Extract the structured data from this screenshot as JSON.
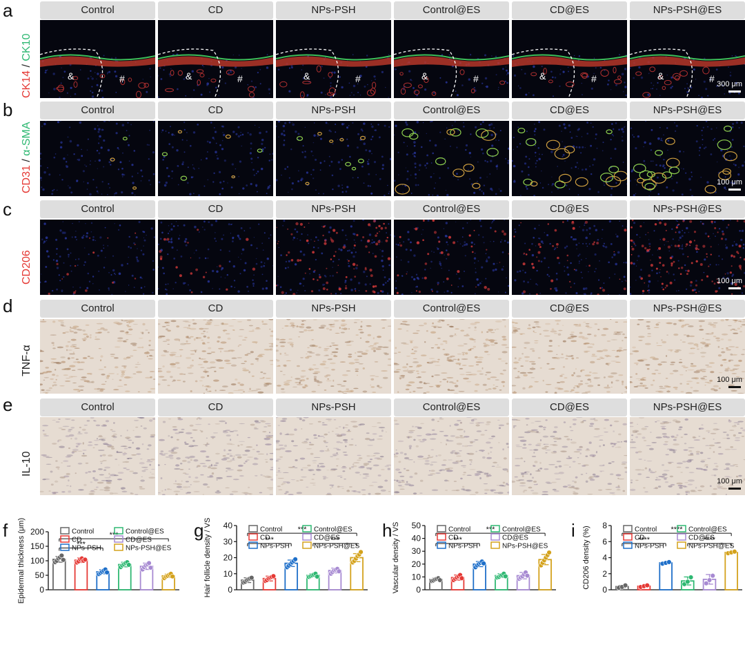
{
  "groups": [
    "Control",
    "CD",
    "NPs-PSH",
    "Control@ES",
    "CD@ES",
    "NPs-PSH@ES"
  ],
  "panels": {
    "a": {
      "letter": "a",
      "label_red": "CK14",
      "label_sep": " / ",
      "label_green": "CK10",
      "scale_text": "300 μm",
      "markers": [
        "&",
        "#"
      ],
      "type": "fluor"
    },
    "b": {
      "letter": "b",
      "label_red": "CD31",
      "label_sep": " / ",
      "label_green": "α-SMA",
      "scale_text": "100 μm",
      "type": "fluor"
    },
    "c": {
      "letter": "c",
      "label_red": "CD206",
      "scale_text": "100 μm",
      "type": "fluor"
    },
    "d": {
      "letter": "d",
      "label": "TNF-α",
      "scale_text": "100 μm",
      "type": "ihc"
    },
    "e": {
      "letter": "e",
      "label": "IL-10",
      "scale_text": "100 μm",
      "type": "ihc"
    }
  },
  "colors": {
    "series": [
      "#666666",
      "#e53935",
      "#1e6fc9",
      "#2eb872",
      "#a78ad2",
      "#d4a21c"
    ],
    "label_red": "#e53935",
    "label_green": "#2eb872"
  },
  "chart_data": [
    {
      "letter": "f",
      "type": "bar",
      "categories": [
        "Control",
        "CD",
        "NPs-PSH",
        "Control@ES",
        "CD@ES",
        "NPs-PSH@ES"
      ],
      "values": [
        105,
        102,
        62,
        87,
        81,
        48
      ],
      "errors": [
        10,
        8,
        7,
        8,
        11,
        6
      ],
      "points": [
        [
          95,
          100,
          108,
          112,
          118,
          103
        ],
        [
          94,
          98,
          105,
          108,
          100,
          104
        ],
        [
          54,
          58,
          62,
          66,
          70,
          60
        ],
        [
          78,
          84,
          88,
          92,
          95,
          86
        ],
        [
          70,
          78,
          84,
          88,
          92,
          76
        ],
        [
          40,
          45,
          48,
          52,
          55,
          46
        ]
      ],
      "title": "",
      "xlabel": "",
      "ylabel": "Epidermal thickness (μm)",
      "ylim": [
        0,
        200
      ],
      "yticks": [
        0,
        50,
        100,
        150,
        200
      ],
      "legend": [
        "Control",
        "CD",
        "NPs-PSH",
        "Control@ES",
        "CD@ES",
        "NPs-PSH@ES"
      ],
      "legend_position": "top",
      "significance": [
        {
          "from": 0,
          "to": 2,
          "label": "***"
        },
        {
          "from": 0,
          "to": 5,
          "label": "***"
        }
      ]
    },
    {
      "letter": "g",
      "type": "bar",
      "categories": [
        "Control",
        "CD",
        "NPs-PSH",
        "Control@ES",
        "CD@ES",
        "NPs-PSH@ES"
      ],
      "values": [
        6,
        7,
        16.5,
        9,
        12,
        20
      ],
      "errors": [
        1.5,
        1.5,
        2,
        1,
        1.5,
        2.5
      ],
      "points": [
        [
          4.5,
          5,
          6,
          6.5,
          7,
          7.5
        ],
        [
          5.5,
          6,
          7,
          7.5,
          8,
          8.5
        ],
        [
          14,
          15,
          16,
          17,
          18,
          19
        ],
        [
          8,
          8.5,
          9,
          9.5,
          10,
          8.2
        ],
        [
          10,
          11,
          12,
          12.5,
          13,
          11.5
        ],
        [
          17,
          18,
          19.5,
          21,
          22,
          23.5
        ]
      ],
      "title": "",
      "xlabel": "",
      "ylabel": "Hair follicle density / VS",
      "ylim": [
        0,
        40
      ],
      "yticks": [
        0,
        10,
        20,
        30,
        40
      ],
      "legend": [
        "Control",
        "CD",
        "NPs-PSH",
        "Control@ES",
        "CD@ES",
        "NPs-PSH@ES"
      ],
      "legend_position": "top",
      "significance": [
        {
          "from": 0,
          "to": 2,
          "label": "***"
        },
        {
          "from": 3,
          "to": 5,
          "label": "***"
        },
        {
          "from": 0,
          "to": 5,
          "label": "***"
        }
      ]
    },
    {
      "letter": "h",
      "type": "bar",
      "categories": [
        "Control",
        "CD",
        "NPs-PSH",
        "Control@ES",
        "CD@ES",
        "NPs-PSH@ES"
      ],
      "values": [
        8,
        9.5,
        20,
        11,
        11,
        23.5
      ],
      "errors": [
        1,
        2,
        2,
        1.5,
        2.5,
        4
      ],
      "points": [
        [
          6.8,
          7.2,
          8,
          8.5,
          9,
          7.5
        ],
        [
          7.5,
          8.5,
          9.5,
          10.5,
          11.5,
          9
        ],
        [
          17.5,
          19,
          20,
          21,
          22,
          20.5
        ],
        [
          9.5,
          10,
          11,
          11.5,
          12.5,
          10.5
        ],
        [
          8.5,
          9.5,
          10.5,
          12,
          13.5,
          11
        ],
        [
          19,
          21,
          23,
          25,
          27,
          29
        ]
      ],
      "title": "",
      "xlabel": "",
      "ylabel": "Vascular density / VS",
      "ylim": [
        0,
        50
      ],
      "yticks": [
        0,
        10,
        20,
        30,
        40,
        50
      ],
      "legend": [
        "Control",
        "CD",
        "NPs-PSH",
        "Control@ES",
        "CD@ES",
        "NPs-PSH@ES"
      ],
      "legend_position": "top",
      "significance": [
        {
          "from": 0,
          "to": 2,
          "label": "***"
        },
        {
          "from": 0,
          "to": 5,
          "label": "***"
        }
      ]
    },
    {
      "letter": "i",
      "type": "bar",
      "categories": [
        "Control",
        "CD",
        "NPs-PSH",
        "Control@ES",
        "CD@ES",
        "NPs-PSH@ES"
      ],
      "values": [
        0.4,
        0.45,
        3.35,
        1.1,
        1.3,
        4.65
      ],
      "errors": [
        0.15,
        0.1,
        0.1,
        0.5,
        0.6,
        0.1
      ],
      "points": [
        [
          0.25,
          0.35,
          0.55
        ],
        [
          0.35,
          0.45,
          0.55
        ],
        [
          3.25,
          3.35,
          3.45
        ],
        [
          0.7,
          1.0,
          1.55
        ],
        [
          0.8,
          1.2,
          1.75
        ],
        [
          4.55,
          4.65,
          4.75
        ]
      ],
      "title": "",
      "xlabel": "",
      "ylabel": "CD206 density (%)",
      "ylim": [
        0,
        8
      ],
      "yticks": [
        0,
        2,
        4,
        6,
        8
      ],
      "legend": [
        "Control",
        "CD",
        "NPs-PSH",
        "Control@ES",
        "CD@ES",
        "NPs-PSH@ES"
      ],
      "legend_position": "top",
      "significance": [
        {
          "from": 0,
          "to": 2,
          "label": "****"
        },
        {
          "from": 3,
          "to": 5,
          "label": "****"
        },
        {
          "from": 0,
          "to": 5,
          "label": "****"
        }
      ]
    }
  ]
}
